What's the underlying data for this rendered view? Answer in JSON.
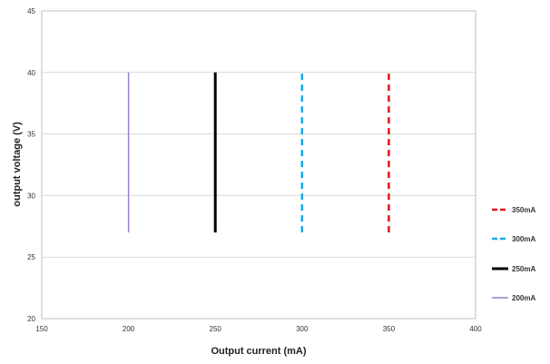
{
  "chart_data": {
    "type": "line",
    "title": "",
    "xlabel": "Output current (mA)",
    "ylabel": "output voltage (V)",
    "xlim": [
      150,
      400
    ],
    "ylim": [
      20,
      45
    ],
    "xticks": [
      150,
      200,
      250,
      300,
      350,
      400
    ],
    "yticks": [
      20,
      25,
      30,
      35,
      40,
      45
    ],
    "grid": "horizontal",
    "legend_position": "right",
    "series": [
      {
        "name": "350mA",
        "color": "#e8121c",
        "style": "dashed",
        "x": [
          350,
          350
        ],
        "y": [
          27,
          40
        ]
      },
      {
        "name": "300mA",
        "color": "#18a9e6",
        "style": "dashed",
        "x": [
          300,
          300
        ],
        "y": [
          27,
          40
        ]
      },
      {
        "name": "250mA",
        "color": "#000000",
        "style": "solid-thick",
        "x": [
          250,
          250
        ],
        "y": [
          27,
          40
        ]
      },
      {
        "name": "200mA",
        "color": "#9a7fc8",
        "style": "solid-thin",
        "x": [
          200,
          200
        ],
        "y": [
          27,
          40
        ]
      }
    ]
  }
}
